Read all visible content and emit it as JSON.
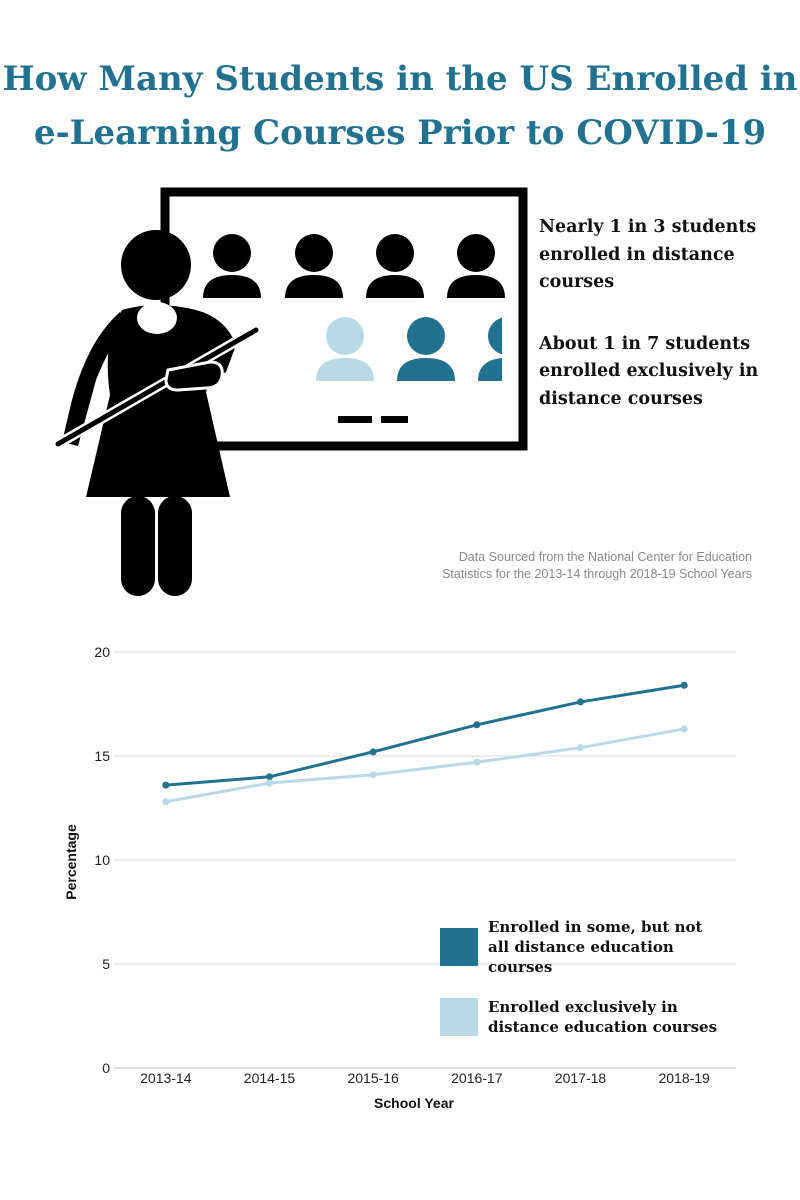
{
  "title": {
    "line1": "How Many Students in the US Enrolled in",
    "line2": "e-Learning Courses Prior to COVID-19"
  },
  "stats": {
    "stat1": "Nearly 1 in 3 students enrolled in distance courses",
    "stat2": "About 1 in 7 students enrolled exclusively in distance courses"
  },
  "source": {
    "line1": "Data Sourced from the National Center for Education",
    "line2": "Statistics for the 2013-14 through 2018-19 School Years"
  },
  "colors": {
    "dark_teal": "#22728f",
    "light_blue": "#b9dae5",
    "black": "#000000",
    "title": "#22728f"
  },
  "icons": [
    "teacher-icon",
    "presentation-board-icon",
    "student-icon"
  ],
  "chart_data": {
    "type": "line",
    "categories": [
      "2013-14",
      "2014-15",
      "2015-16",
      "2016-17",
      "2017-18",
      "2018-19"
    ],
    "series": [
      {
        "name": "Enrolled in some, but not all distance education courses",
        "values": [
          13.6,
          14.0,
          15.2,
          16.5,
          17.6,
          18.4
        ],
        "color": "#22728f"
      },
      {
        "name": "Enrolled exclusively in distance education courses",
        "values": [
          12.8,
          13.7,
          14.1,
          14.7,
          15.4,
          16.3
        ],
        "color": "#b9dae5"
      }
    ],
    "xlabel": "School Year",
    "ylabel": "Percentage",
    "ylim": [
      0,
      20
    ],
    "yticks": [
      "0",
      "5",
      "10",
      "15",
      "20"
    ],
    "grid": true,
    "legend_position": "bottom-right"
  }
}
